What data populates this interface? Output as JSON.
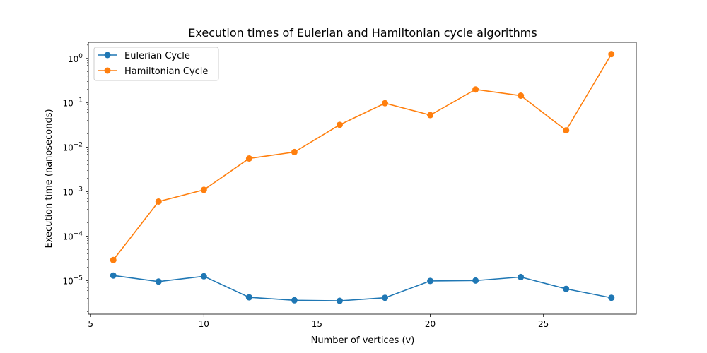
{
  "chart_data": {
    "type": "line",
    "title": "Execution times of Eulerian and Hamiltonian cycle algorithms",
    "xlabel": "Number of vertices (v)",
    "ylabel": "Execution time (nanoseconds)",
    "yscale": "log",
    "xlim": [
      4.9,
      29.1
    ],
    "ylim": [
      1.75e-06,
      2.3
    ],
    "grid": false,
    "legend_position": "top-left",
    "x_ticks": [
      {
        "value": 5,
        "label": "5"
      },
      {
        "value": 10,
        "label": "10"
      },
      {
        "value": 15,
        "label": "15"
      },
      {
        "value": 20,
        "label": "20"
      },
      {
        "value": 25,
        "label": "25"
      }
    ],
    "y_ticks": [
      {
        "value": 1e-05,
        "base": "10",
        "exp": "−5"
      },
      {
        "value": 0.0001,
        "base": "10",
        "exp": "−4"
      },
      {
        "value": 0.001,
        "base": "10",
        "exp": "−3"
      },
      {
        "value": 0.01,
        "base": "10",
        "exp": "−2"
      },
      {
        "value": 0.1,
        "base": "10",
        "exp": "−1"
      },
      {
        "value": 1,
        "base": "10",
        "exp": "0"
      }
    ],
    "x": [
      6,
      8,
      10,
      12,
      14,
      16,
      18,
      20,
      22,
      24,
      26,
      28
    ],
    "series": [
      {
        "name": "Eulerian Cycle",
        "color": "#1f77b4",
        "values": [
          1.3e-05,
          9.5e-06,
          1.25e-05,
          4.2e-06,
          3.6e-06,
          3.5e-06,
          4.1e-06,
          9.8e-06,
          1e-05,
          1.2e-05,
          6.5e-06,
          4.1e-06
        ]
      },
      {
        "name": "Hamiltonian Cycle",
        "color": "#ff7f0e",
        "values": [
          2.9e-05,
          0.0006,
          0.0011,
          0.0056,
          0.0078,
          0.032,
          0.098,
          0.053,
          0.2,
          0.145,
          0.024,
          1.25
        ]
      }
    ]
  }
}
